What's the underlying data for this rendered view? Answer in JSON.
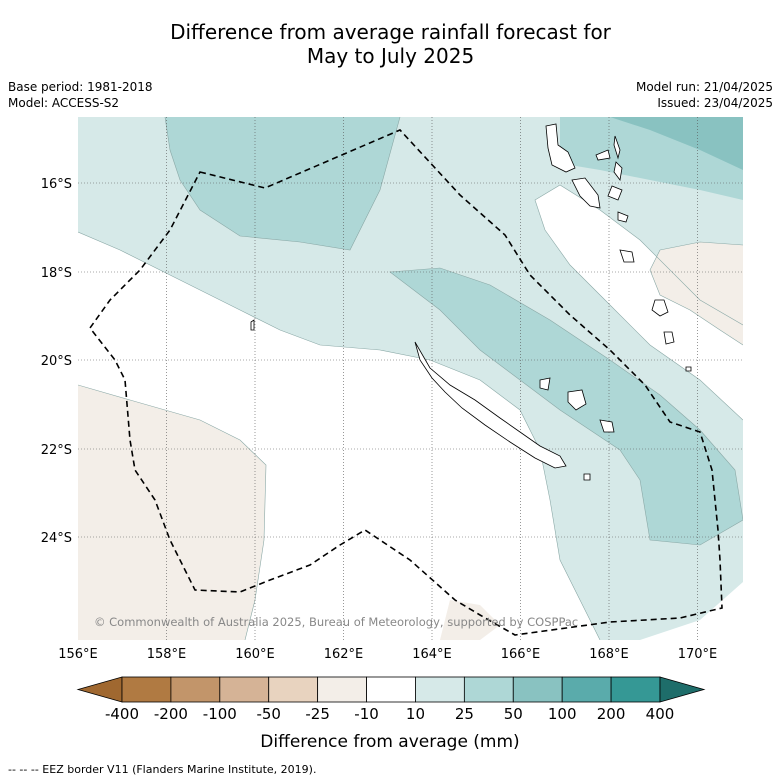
{
  "header": {
    "title_line1": "Difference from average rainfall forecast for",
    "title_line2": "May to July 2025",
    "base_period": "Base period: 1981-2018",
    "model": "Model: ACCESS-S2",
    "model_run": "Model run: 21/04/2025",
    "issued": "Issued: 23/04/2025"
  },
  "map": {
    "lon_ticks": [
      "156°E",
      "158°E",
      "160°E",
      "162°E",
      "164°E",
      "166°E",
      "168°E",
      "170°E"
    ],
    "lat_ticks": [
      "16°S",
      "18°S",
      "20°S",
      "22°S",
      "24°S"
    ],
    "credit": "© Commonwealth of Australia 2025, Bureau of Meteorology, supported by COSPPac"
  },
  "colorbar": {
    "labels": [
      "-400",
      "-200",
      "-100",
      "-50",
      "-25",
      "-10",
      "10",
      "25",
      "50",
      "100",
      "200",
      "400"
    ],
    "colors": [
      "#a06830",
      "#b07a42",
      "#c2956a",
      "#d5b396",
      "#e8d3bf",
      "#f3eee8",
      "#ffffff",
      "#d6e9e8",
      "#aed7d6",
      "#89c2c1",
      "#5aabab",
      "#359895",
      "#1e6d6a"
    ],
    "title": "Difference from average (mm)"
  },
  "footer": {
    "legend_line": "--  --  -- EEZ border V11 (Flanders Marine Institute, 2019)."
  }
}
